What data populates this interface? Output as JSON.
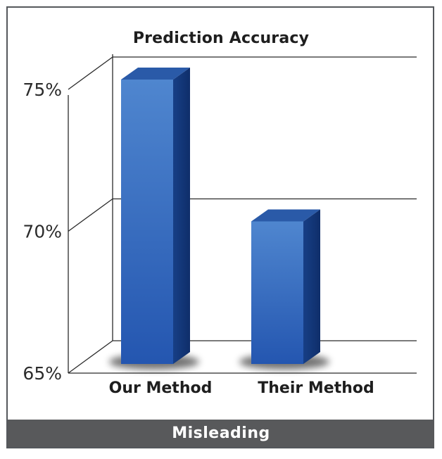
{
  "chart_data": {
    "type": "bar",
    "title": "Prediction Accuracy",
    "categories": [
      "Our Method",
      "Their Method"
    ],
    "values": [
      75,
      70
    ],
    "ylim": [
      65,
      76
    ],
    "yticks": [
      "65%",
      "70%",
      "75%"
    ],
    "ytick_values": [
      65,
      70,
      75
    ],
    "grid": true,
    "style": "3d",
    "bar_color": "#2f5fb3"
  },
  "footer": {
    "label": "Misleading"
  }
}
